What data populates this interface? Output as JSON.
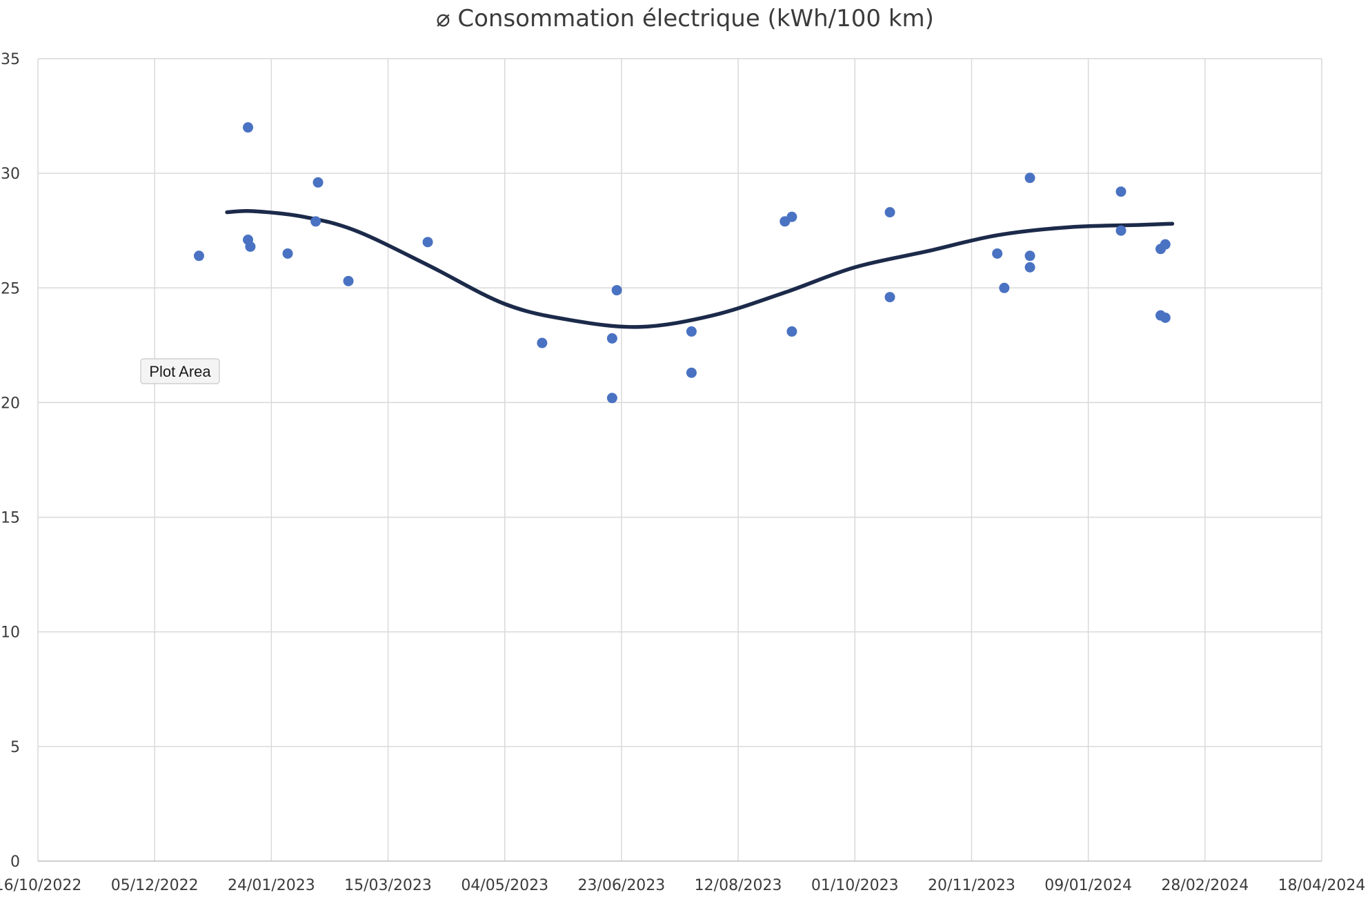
{
  "chart_data": {
    "type": "scatter",
    "title": "⌀ Consommation électrique (kWh/100 km)",
    "xlabel": "",
    "ylabel": "",
    "x_axis": {
      "type": "date",
      "range": [
        "2022-10-16",
        "2024-04-18"
      ],
      "tick_labels": [
        "16/10/2022",
        "05/12/2022",
        "24/01/2023",
        "15/03/2023",
        "04/05/2023",
        "23/06/2023",
        "12/08/2023",
        "01/10/2023",
        "20/11/2023",
        "09/01/2024",
        "28/02/2024",
        "18/04/2024"
      ],
      "tick_dates": [
        "2022-10-16",
        "2022-12-05",
        "2023-01-24",
        "2023-03-15",
        "2023-05-04",
        "2023-06-23",
        "2023-08-12",
        "2023-10-01",
        "2023-11-20",
        "2024-01-09",
        "2024-02-28",
        "2024-04-18"
      ]
    },
    "y_axis": {
      "range": [
        0,
        35
      ],
      "tick_values": [
        0,
        5,
        10,
        15,
        20,
        25,
        30,
        35
      ],
      "tick_labels": [
        "0",
        "5",
        "10",
        "15",
        "20",
        "25",
        "30",
        "35"
      ]
    },
    "grid": true,
    "legend": "none",
    "series": [
      {
        "type": "scatter",
        "color": "#4a72c2",
        "points": [
          {
            "x": "2022-12-24",
            "y": 26.4
          },
          {
            "x": "2023-01-14",
            "y": 32.0
          },
          {
            "x": "2023-01-14",
            "y": 27.1
          },
          {
            "x": "2023-01-15",
            "y": 26.8
          },
          {
            "x": "2023-01-31",
            "y": 26.5
          },
          {
            "x": "2023-02-12",
            "y": 27.9
          },
          {
            "x": "2023-02-13",
            "y": 29.6
          },
          {
            "x": "2023-02-26",
            "y": 25.3
          },
          {
            "x": "2023-04-01",
            "y": 27.0
          },
          {
            "x": "2023-05-20",
            "y": 22.6
          },
          {
            "x": "2023-06-19",
            "y": 22.8
          },
          {
            "x": "2023-06-19",
            "y": 20.2
          },
          {
            "x": "2023-06-21",
            "y": 24.9
          },
          {
            "x": "2023-07-23",
            "y": 23.1
          },
          {
            "x": "2023-07-23",
            "y": 21.3
          },
          {
            "x": "2023-09-01",
            "y": 27.9
          },
          {
            "x": "2023-09-04",
            "y": 28.1
          },
          {
            "x": "2023-09-04",
            "y": 23.1
          },
          {
            "x": "2023-10-16",
            "y": 28.3
          },
          {
            "x": "2023-10-16",
            "y": 24.6
          },
          {
            "x": "2023-12-01",
            "y": 26.5
          },
          {
            "x": "2023-12-04",
            "y": 25.0
          },
          {
            "x": "2023-12-15",
            "y": 29.8
          },
          {
            "x": "2023-12-15",
            "y": 26.4
          },
          {
            "x": "2023-12-15",
            "y": 25.9
          },
          {
            "x": "2024-01-23",
            "y": 29.2
          },
          {
            "x": "2024-01-23",
            "y": 27.5
          },
          {
            "x": "2024-02-09",
            "y": 26.7
          },
          {
            "x": "2024-02-11",
            "y": 26.9
          },
          {
            "x": "2024-02-09",
            "y": 23.8
          },
          {
            "x": "2024-02-11",
            "y": 23.7
          }
        ]
      },
      {
        "type": "line",
        "style": "smoothed trend",
        "color": "#1c2a4a",
        "points": [
          {
            "x": "2023-01-05",
            "y": 28.3
          },
          {
            "x": "2023-01-16",
            "y": 28.35
          },
          {
            "x": "2023-02-07",
            "y": 28.1
          },
          {
            "x": "2023-03-01",
            "y": 27.5
          },
          {
            "x": "2023-04-01",
            "y": 26.0
          },
          {
            "x": "2023-05-04",
            "y": 24.3
          },
          {
            "x": "2023-06-01",
            "y": 23.6
          },
          {
            "x": "2023-07-01",
            "y": 23.3
          },
          {
            "x": "2023-08-01",
            "y": 23.8
          },
          {
            "x": "2023-09-01",
            "y": 24.8
          },
          {
            "x": "2023-10-01",
            "y": 25.9
          },
          {
            "x": "2023-11-01",
            "y": 26.6
          },
          {
            "x": "2023-12-01",
            "y": 27.3
          },
          {
            "x": "2024-01-01",
            "y": 27.65
          },
          {
            "x": "2024-02-01",
            "y": 27.75
          },
          {
            "x": "2024-02-14",
            "y": 27.8
          }
        ]
      }
    ]
  },
  "overlay": {
    "tooltip_label": "Plot Area"
  }
}
